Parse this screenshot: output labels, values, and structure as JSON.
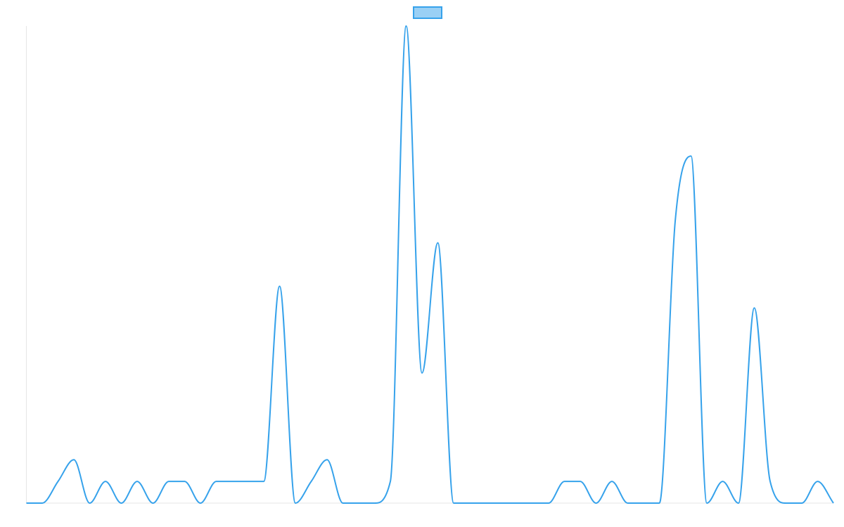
{
  "chart_data": {
    "type": "line",
    "title": "",
    "xlabel": "",
    "ylabel": "",
    "legend": {
      "position": "top-center",
      "entries": [
        {
          "name": "",
          "color": "#36a2eb",
          "fill": "#9ad0f5"
        }
      ]
    },
    "grid": false,
    "smooth": true,
    "x": [
      0,
      1,
      2,
      3,
      4,
      5,
      6,
      7,
      8,
      9,
      10,
      11,
      12,
      13,
      14,
      15,
      16,
      17,
      18,
      19,
      20,
      21,
      22,
      23,
      24,
      25,
      26,
      27,
      28,
      29,
      30,
      31,
      32,
      33,
      34,
      35,
      36,
      37,
      38,
      39,
      40,
      41,
      42,
      43,
      44,
      45,
      46,
      47,
      48,
      49,
      50,
      51
    ],
    "xlim": [
      0,
      51
    ],
    "ylim": [
      0,
      22
    ],
    "series": [
      {
        "name": "",
        "color": "#36a2eb",
        "values": [
          0,
          0,
          1,
          2,
          0,
          1,
          0,
          1,
          0,
          1,
          1,
          0,
          1,
          1,
          1,
          1,
          10,
          0,
          1,
          2,
          0,
          0,
          0,
          1,
          22,
          6,
          12,
          0,
          0,
          0,
          0,
          0,
          0,
          0,
          1,
          1,
          0,
          1,
          0,
          0,
          0,
          13,
          16,
          0,
          1,
          0,
          9,
          1,
          0,
          0,
          1,
          0
        ]
      }
    ]
  }
}
